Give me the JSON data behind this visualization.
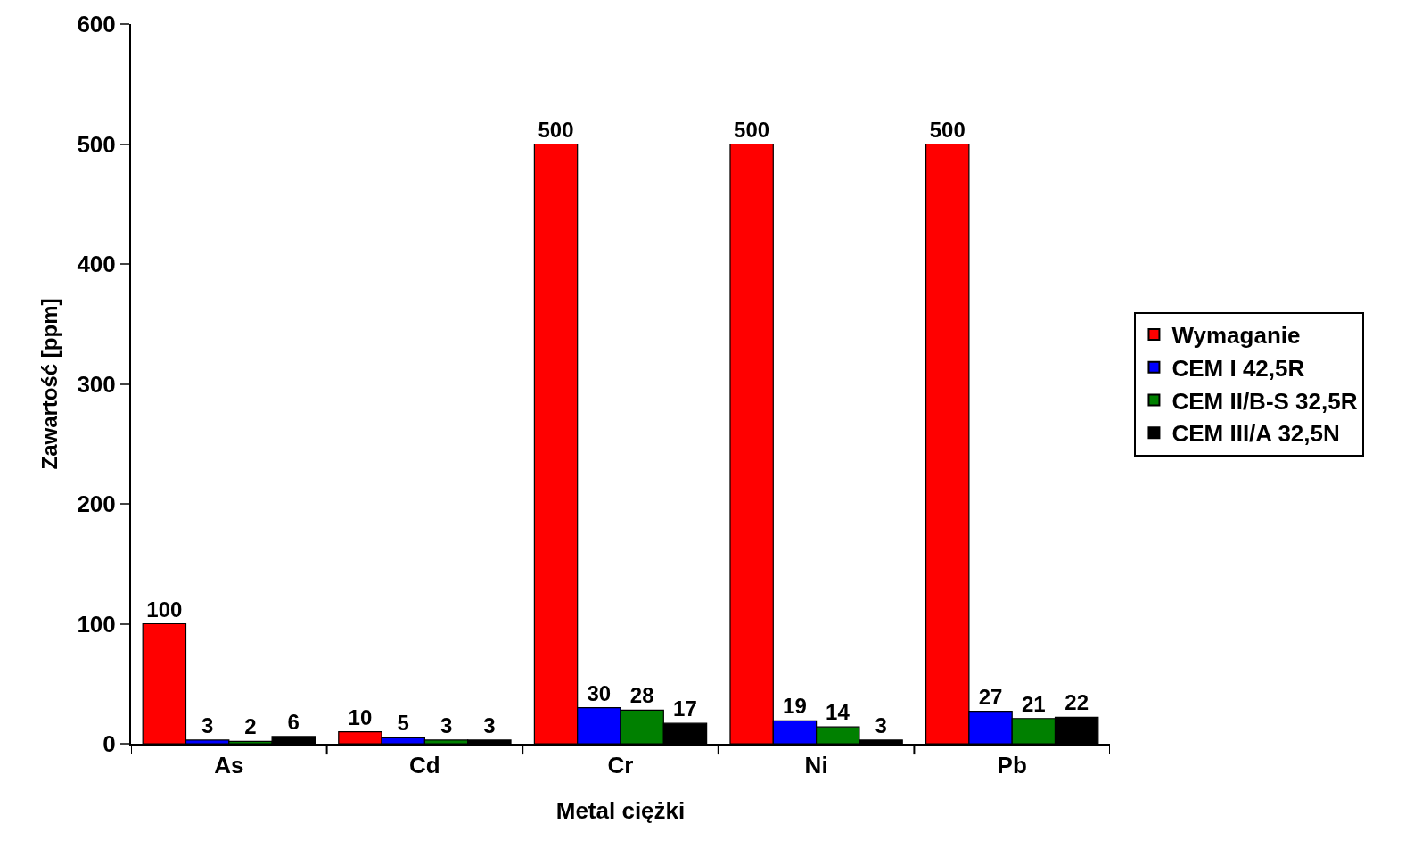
{
  "chart_data": {
    "type": "bar",
    "xlabel": "Metal ciężki",
    "ylabel": "Zawartość [ppm]",
    "categories": [
      "As",
      "Cd",
      "Cr",
      "Ni",
      "Pb"
    ],
    "series": [
      {
        "name": "Wymaganie",
        "color": "#ff0000",
        "values": [
          100,
          10,
          500,
          500,
          500
        ]
      },
      {
        "name": "CEM I 42,5R",
        "color": "#0000ff",
        "values": [
          3,
          5,
          30,
          19,
          27
        ]
      },
      {
        "name": "CEM II/B-S 32,5R",
        "color": "#008000",
        "values": [
          2,
          3,
          28,
          14,
          21
        ]
      },
      {
        "name": "CEM III/A 32,5N",
        "color": "#000000",
        "values": [
          6,
          3,
          17,
          3,
          22
        ]
      }
    ],
    "ylim": [
      0,
      600
    ],
    "yticks": [
      0,
      100,
      200,
      300,
      400,
      500,
      600
    ],
    "data_labels": true,
    "legend": "right"
  }
}
